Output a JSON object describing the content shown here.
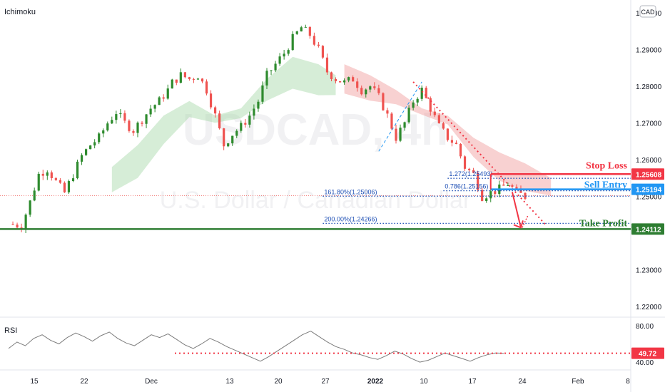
{
  "header": {
    "indicator_name": "Ichimoku",
    "currency_badge": "CAD"
  },
  "watermark": {
    "symbol": "USDCAD, 4h",
    "description": "U.S. Dollar / Canadian Dollar"
  },
  "colors": {
    "up": "#26a69a",
    "up_body": "#2e8b2e",
    "down": "#ef5350",
    "stop": "#f23645",
    "entry": "#2196f3",
    "profit": "#2e7d32",
    "fib": "#1e4fb5",
    "rsi": "#7b7b7b",
    "cloud_green": "#a5d6a7",
    "cloud_red": "#ef9a9a"
  },
  "chart_data": [
    {
      "type": "line",
      "panel": "price",
      "title": "",
      "y_ticks": [
        "1.30000",
        "1.29000",
        "1.28000",
        "1.27000",
        "1.26000",
        "1.25000",
        "1.23000",
        "1.22000"
      ],
      "ylim": [
        1.2175,
        1.3035
      ],
      "x_ticks": [
        "15",
        "22",
        "Dec",
        "13",
        "20",
        "27",
        "2022",
        "10",
        "17",
        "24",
        "Feb",
        "8"
      ],
      "price_path": [
        [
          0,
          1.2425
        ],
        [
          3,
          1.242
        ],
        [
          5,
          1.2485
        ],
        [
          7,
          1.256
        ],
        [
          9,
          1.2575
        ],
        [
          11,
          1.254
        ],
        [
          13,
          1.251
        ],
        [
          15,
          1.256
        ],
        [
          17,
          1.261
        ],
        [
          19,
          1.264
        ],
        [
          21,
          1.266
        ],
        [
          23,
          1.27
        ],
        [
          25,
          1.273
        ],
        [
          27,
          1.27
        ],
        [
          29,
          1.268
        ],
        [
          31,
          1.271
        ],
        [
          33,
          1.274
        ],
        [
          35,
          1.276
        ],
        [
          37,
          1.279
        ],
        [
          38,
          1.281
        ],
        [
          40,
          1.283
        ],
        [
          42,
          1.282
        ],
        [
          44,
          1.283
        ],
        [
          46,
          1.279
        ],
        [
          48,
          1.272
        ],
        [
          50,
          1.264
        ],
        [
          52,
          1.267
        ],
        [
          54,
          1.269
        ],
        [
          56,
          1.272
        ],
        [
          58,
          1.276
        ],
        [
          60,
          1.283
        ],
        [
          62,
          1.286
        ],
        [
          64,
          1.289
        ],
        [
          66,
          1.293
        ],
        [
          68,
          1.296
        ],
        [
          70,
          1.294
        ],
        [
          72,
          1.29
        ],
        [
          74,
          1.284
        ],
        [
          76,
          1.282
        ],
        [
          78,
          1.281
        ],
        [
          80,
          1.282
        ],
        [
          82,
          1.279
        ],
        [
          84,
          1.28
        ],
        [
          86,
          1.277
        ],
        [
          88,
          1.272
        ],
        [
          90,
          1.266
        ],
        [
          92,
          1.27
        ],
        [
          94,
          1.276
        ],
        [
          96,
          1.279
        ],
        [
          98,
          1.274
        ],
        [
          100,
          1.269
        ],
        [
          102,
          1.266
        ],
        [
          104,
          1.264
        ],
        [
          106,
          1.258
        ],
        [
          108,
          1.256
        ],
        [
          110,
          1.25
        ],
        [
          112,
          1.251
        ],
        [
          114,
          1.252
        ],
        [
          116,
          1.2535
        ],
        [
          118,
          1.251
        ],
        [
          120,
          1.25
        ]
      ],
      "cloud_green": [
        [
          24,
          1.258
        ],
        [
          30,
          1.264
        ],
        [
          36,
          1.272
        ],
        [
          42,
          1.276
        ],
        [
          48,
          1.272
        ],
        [
          54,
          1.274
        ],
        [
          60,
          1.282
        ],
        [
          66,
          1.288
        ],
        [
          72,
          1.286
        ],
        [
          76,
          1.283
        ]
      ],
      "cloud_red": [
        [
          78,
          1.286
        ],
        [
          84,
          1.283
        ],
        [
          90,
          1.279
        ],
        [
          96,
          1.274
        ],
        [
          102,
          1.272
        ],
        [
          108,
          1.266
        ],
        [
          114,
          1.262
        ],
        [
          120,
          1.259
        ],
        [
          126,
          1.255
        ]
      ],
      "levels": [
        {
          "name": "Stop Loss",
          "label": "1.25608",
          "value": 1.25608
        },
        {
          "name": "Sell Entry",
          "label": "1.25194",
          "value": 1.25194
        },
        {
          "name": "Take Profit",
          "label": "1.24112",
          "value": 1.24112
        }
      ],
      "fib_labels": {
        "f1618": "161.80%(1.25006)",
        "f2000": "200.00%(1.24266)",
        "f1272": "1.272(1.25493)",
        "f0786": "0.786(1.25156)"
      },
      "fib_values": {
        "f1618": 1.25006,
        "f2000": 1.24266,
        "f1272": 1.25493,
        "f0786": 1.25156
      },
      "current_price": 1.2502,
      "arrow": {
        "from": [
          117,
          1.2512
        ],
        "to": [
          119,
          1.2415
        ]
      }
    },
    {
      "type": "line",
      "panel": "rsi",
      "title": "RSI",
      "y_ticks": [
        "80.00",
        "40.00"
      ],
      "ylim": [
        33,
        87
      ],
      "current_label": "49.72",
      "current_value": 49.72,
      "values": [
        55,
        62,
        58,
        66,
        70,
        64,
        60,
        67,
        72,
        68,
        63,
        69,
        73,
        66,
        61,
        58,
        64,
        70,
        67,
        71,
        65,
        59,
        55,
        60,
        66,
        62,
        57,
        53,
        49,
        45,
        41,
        46,
        52,
        58,
        64,
        70,
        74,
        68,
        62,
        57,
        54,
        50,
        48,
        45,
        43,
        47,
        52,
        49,
        44,
        40,
        42,
        46,
        50,
        47,
        44,
        41,
        45,
        48,
        50,
        49.72
      ]
    }
  ]
}
